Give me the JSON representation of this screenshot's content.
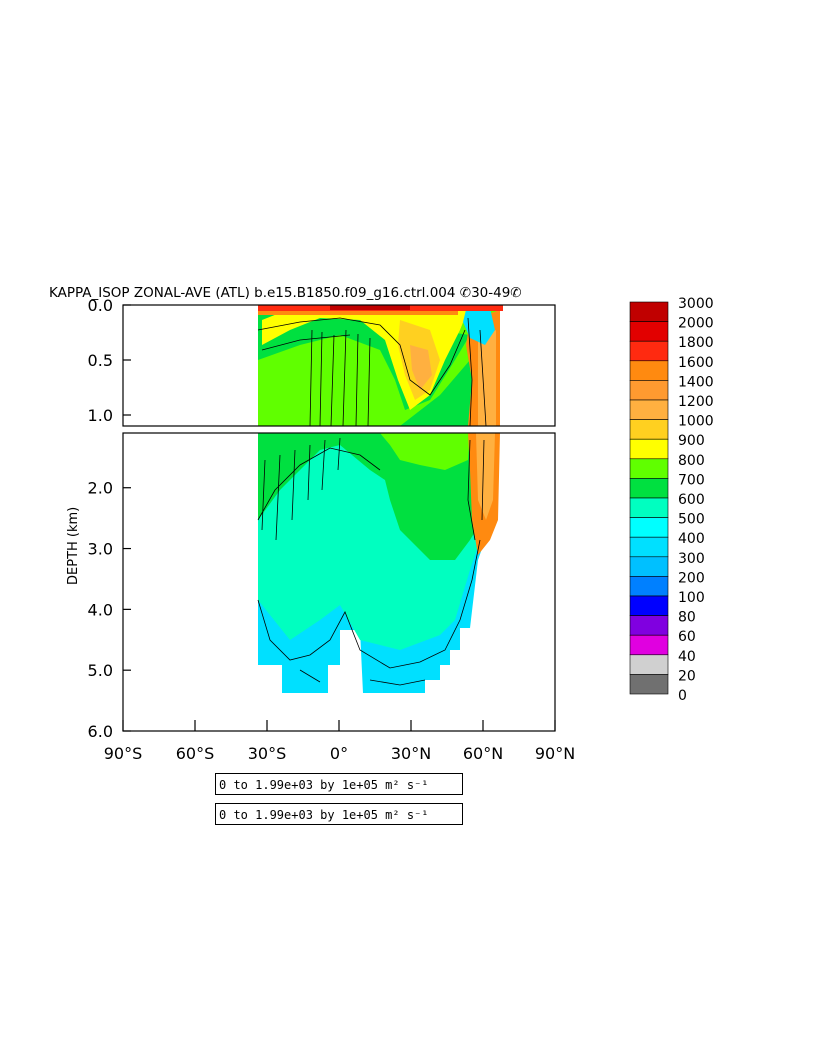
{
  "title": "KAPPA_ISOP ZONAL-AVE (ATL) b.e15.B1850.f09_g16.ctrl.004 ✆30-49✆",
  "chart_data": {
    "type": "heatmap",
    "title": "KAPPA_ISOP ZONAL-AVE (ATL) b.e15.B1850.f09_g16.ctrl.004 ✆30-49✆",
    "xlabel": "",
    "ylabel": "DEPTH (km)",
    "x_ticks": [
      "90°S",
      "60°S",
      "30°S",
      "0°",
      "30°N",
      "60°N",
      "90°N"
    ],
    "x_tick_values": [
      -90,
      -60,
      -30,
      0,
      30,
      60,
      90
    ],
    "xlim": [
      -90,
      90
    ],
    "y_ticks_upper": [
      "0.0",
      "0.5",
      "1.0"
    ],
    "y_tick_values_upper": [
      0.0,
      0.5,
      1.0
    ],
    "y_ticks_lower": [
      "2.0",
      "3.0",
      "4.0",
      "5.0",
      "6.0"
    ],
    "y_tick_values_lower": [
      2.0,
      3.0,
      4.0,
      5.0,
      6.0
    ],
    "ylim_upper": [
      0.0,
      1.1
    ],
    "ylim_lower": [
      1.1,
      6.0
    ],
    "data_region": {
      "lat_min": -34,
      "lat_max": 68
    },
    "colorbar": {
      "labels": [
        "3000",
        "2000",
        "1800",
        "1600",
        "1400",
        "1200",
        "1000",
        "900",
        "800",
        "700",
        "600",
        "500",
        "400",
        "300",
        "200",
        "100",
        "80",
        "60",
        "40",
        "20",
        "0"
      ],
      "colors": [
        "#c00000",
        "#e20000",
        "#ff2a10",
        "#ff8a10",
        "#ff9a30",
        "#ffb040",
        "#ffd020",
        "#ffff00",
        "#60ff00",
        "#00e040",
        "#00ffc0",
        "#00ffff",
        "#00e0ff",
        "#00c0ff",
        "#0080ff",
        "#0000ff",
        "#8000e0",
        "#e000e0",
        "#d0d0d0",
        "#707070"
      ]
    },
    "regions": [
      {
        "value_range": "400-500",
        "lat": [
          -34,
          5
        ],
        "depth": [
          3.7,
          5.3
        ]
      },
      {
        "value_range": "500-600",
        "lat": [
          -34,
          60
        ],
        "depth": [
          1.1,
          4.9
        ]
      },
      {
        "value_range": "600-700",
        "lat": [
          -34,
          65
        ],
        "depth": [
          0.3,
          3.0
        ]
      },
      {
        "value_range": "700-800",
        "lat": [
          -30,
          55
        ],
        "depth": [
          0.0,
          1.5
        ]
      },
      {
        "value_range": "900-1000",
        "lat": [
          10,
          55
        ],
        "depth": [
          0.0,
          1.2
        ]
      },
      {
        "value_range": "1000-1400",
        "lat": [
          55,
          68
        ],
        "depth": [
          0.1,
          2.5
        ]
      },
      {
        "value_range": "1600-3000",
        "lat": [
          -20,
          40
        ],
        "depth": [
          0.0,
          0.05
        ]
      },
      {
        "value_range": "400-500",
        "lat": [
          55,
          63
        ],
        "depth": [
          0.0,
          0.3
        ]
      }
    ],
    "grid": false,
    "legend": "right"
  },
  "info_boxes": [
    {
      "text": "0 to 1.99e+03 by 1e+05 m² s⁻¹"
    },
    {
      "text": "0 to 1.99e+03 by 1e+05 m² s⁻¹"
    }
  ],
  "colors": {
    "background": "#ffffff",
    "axis": "#000000"
  }
}
